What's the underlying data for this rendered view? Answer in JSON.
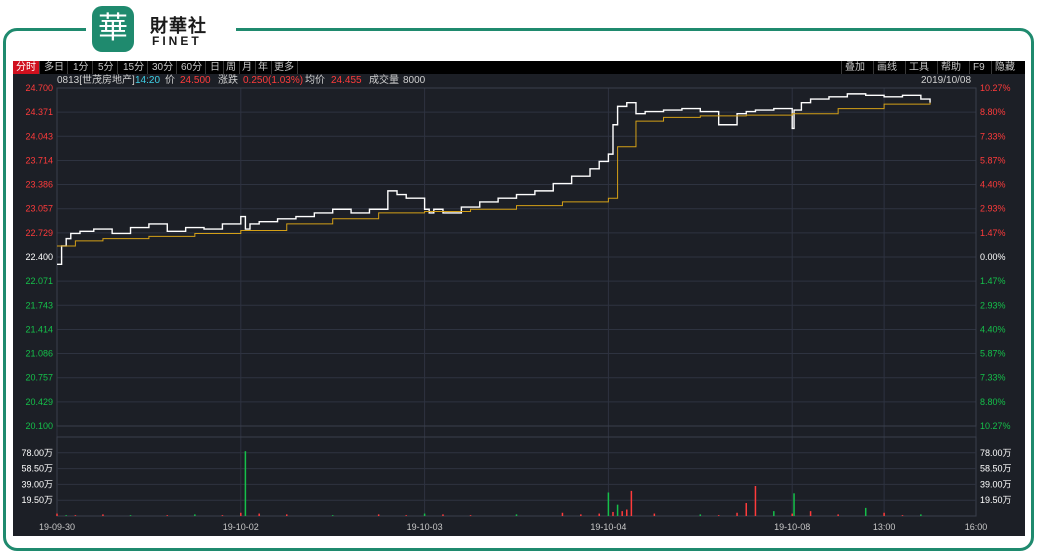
{
  "brand": {
    "logo_glyph": "華",
    "name_cn": "財華社",
    "name_en": "FINET"
  },
  "toolbar": {
    "tabs": [
      "分时",
      "多日",
      "1分",
      "5分",
      "15分",
      "30分",
      "60分",
      "日",
      "周",
      "月",
      "年",
      "更多"
    ],
    "active_tab": "分时",
    "right_tabs": [
      "叠加",
      "画线",
      "工具",
      "帮助",
      "F9",
      "隐藏"
    ]
  },
  "info": {
    "code": "0813[世茂房地产]",
    "time": "14:20",
    "price_label": "价",
    "price": "24.500",
    "change_label": "涨跌",
    "change": "0.250(1.03%)",
    "avg_label": "均价",
    "avg": "24.455",
    "vol_label": "成交量",
    "vol": "8000",
    "date": "2019/10/08"
  },
  "colors": {
    "up": "#ff3b3b",
    "down": "#15c04a",
    "price_line": "#ffffff",
    "avg_line": "#d4a017",
    "grid": "#2e3340",
    "bg": "#1c1f26"
  },
  "chart_data": {
    "type": "line",
    "price_axis": {
      "ticks": [
        "24.700",
        "24.371",
        "24.043",
        "23.714",
        "23.386",
        "23.057",
        "22.729",
        "22.400",
        "22.071",
        "21.743",
        "21.414",
        "21.086",
        "20.757",
        "20.429",
        "20.100"
      ],
      "up_count": 7,
      "ylim": [
        20.1,
        24.7
      ]
    },
    "pct_axis": {
      "ticks": [
        "10.27%",
        "8.80%",
        "7.33%",
        "5.87%",
        "4.40%",
        "2.93%",
        "1.47%",
        "0.00%",
        "1.47%",
        "2.93%",
        "4.40%",
        "5.87%",
        "7.33%",
        "8.80%",
        "10.27%"
      ]
    },
    "volume_axis": {
      "ticks": [
        "78.00万",
        "58.50万",
        "39.00万",
        "19.50万"
      ],
      "ylim": [
        0,
        97.5
      ]
    },
    "x_labels": [
      "19-09-30",
      "19-10-02",
      "19-10-03",
      "19-10-04",
      "19-10-08",
      "13:00",
      "16:00"
    ],
    "x_positions": [
      0,
      0.2,
      0.4,
      0.6,
      0.8,
      0.9,
      1.0
    ],
    "series": [
      {
        "name": "价",
        "x": [
          0,
          0.005,
          0.01,
          0.015,
          0.025,
          0.04,
          0.06,
          0.08,
          0.1,
          0.12,
          0.14,
          0.16,
          0.18,
          0.2,
          0.205,
          0.21,
          0.22,
          0.24,
          0.26,
          0.28,
          0.3,
          0.32,
          0.34,
          0.36,
          0.37,
          0.38,
          0.4,
          0.405,
          0.41,
          0.42,
          0.44,
          0.46,
          0.48,
          0.5,
          0.52,
          0.54,
          0.56,
          0.58,
          0.59,
          0.6,
          0.605,
          0.61,
          0.62,
          0.63,
          0.64,
          0.66,
          0.68,
          0.7,
          0.72,
          0.74,
          0.75,
          0.76,
          0.78,
          0.8,
          0.802,
          0.81,
          0.82,
          0.84,
          0.86,
          0.88,
          0.9,
          0.92,
          0.94,
          0.95
        ],
        "values": [
          22.3,
          22.55,
          22.65,
          22.72,
          22.75,
          22.78,
          22.72,
          22.8,
          22.85,
          22.75,
          22.8,
          22.78,
          22.85,
          22.95,
          22.78,
          22.85,
          22.88,
          22.92,
          22.95,
          23.0,
          23.05,
          23.0,
          23.05,
          23.3,
          23.25,
          23.2,
          23.05,
          23.0,
          23.05,
          23.0,
          23.08,
          23.15,
          23.2,
          23.25,
          23.3,
          23.4,
          23.5,
          23.6,
          23.7,
          23.8,
          24.2,
          24.45,
          24.5,
          24.35,
          24.38,
          24.4,
          24.42,
          24.38,
          24.2,
          24.35,
          24.38,
          24.4,
          24.42,
          24.15,
          24.4,
          24.5,
          24.55,
          24.58,
          24.62,
          24.6,
          24.58,
          24.6,
          24.55,
          24.5
        ]
      },
      {
        "name": "均价",
        "x": [
          0,
          0.02,
          0.05,
          0.1,
          0.15,
          0.2,
          0.25,
          0.3,
          0.35,
          0.4,
          0.45,
          0.5,
          0.55,
          0.6,
          0.61,
          0.63,
          0.66,
          0.7,
          0.75,
          0.8,
          0.85,
          0.9,
          0.95
        ],
        "values": [
          22.55,
          22.62,
          22.65,
          22.68,
          22.72,
          22.76,
          22.85,
          22.92,
          23.0,
          23.02,
          23.05,
          23.1,
          23.15,
          23.2,
          23.9,
          24.25,
          24.3,
          24.32,
          24.33,
          24.35,
          24.42,
          24.48,
          24.5
        ]
      }
    ],
    "volume": {
      "x": [
        0.0,
        0.01,
        0.02,
        0.05,
        0.08,
        0.12,
        0.15,
        0.18,
        0.2,
        0.205,
        0.22,
        0.25,
        0.3,
        0.35,
        0.38,
        0.4,
        0.42,
        0.45,
        0.5,
        0.55,
        0.57,
        0.59,
        0.6,
        0.605,
        0.61,
        0.615,
        0.62,
        0.625,
        0.65,
        0.7,
        0.72,
        0.74,
        0.75,
        0.76,
        0.78,
        0.8,
        0.802,
        0.82,
        0.85,
        0.88,
        0.9,
        0.92,
        0.94
      ],
      "values": [
        3,
        1,
        1,
        2,
        1,
        1,
        2,
        1,
        4,
        80,
        3,
        2,
        1,
        2,
        1,
        3,
        2,
        1,
        2,
        4,
        2,
        3,
        29,
        5,
        14,
        6,
        8,
        31,
        3,
        2,
        1,
        4,
        16,
        37,
        6,
        3,
        28,
        6,
        2,
        10,
        4,
        1,
        2
      ],
      "up": [
        1,
        0,
        1,
        1,
        0,
        1,
        0,
        1,
        1,
        0,
        1,
        1,
        0,
        1,
        1,
        0,
        1,
        1,
        0,
        1,
        1,
        1,
        0,
        1,
        0,
        1,
        1,
        1,
        1,
        0,
        1,
        1,
        1,
        1,
        0,
        1,
        0,
        1,
        1,
        0,
        1,
        1,
        0
      ]
    }
  }
}
